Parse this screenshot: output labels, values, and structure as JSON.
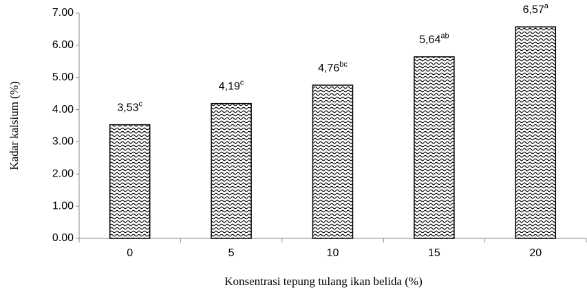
{
  "chart_data": {
    "type": "bar",
    "x_label": "Konsentrasi tepung tulang ikan belida (%)",
    "y_label": "Kadar kalsium (%)",
    "categories": [
      "0",
      "5",
      "10",
      "15",
      "20"
    ],
    "values": [
      3.53,
      4.19,
      4.76,
      5.64,
      6.57
    ],
    "value_labels": [
      "3,53",
      "4,19",
      "4,76",
      "5,64",
      "6,57"
    ],
    "significance": [
      "c",
      "c",
      "bc",
      "ab",
      "a"
    ],
    "color": "#000000",
    "ylim": [
      0,
      7
    ],
    "yticks": [
      {
        "value": 0,
        "label": "0.00"
      },
      {
        "value": 1,
        "label": "1.00"
      },
      {
        "value": 2,
        "label": "2.00"
      },
      {
        "value": 3,
        "label": "3.00"
      },
      {
        "value": 4,
        "label": "4.00"
      },
      {
        "value": 5,
        "label": "5.00"
      },
      {
        "value": 6,
        "label": "6.00"
      },
      {
        "value": 7,
        "label": "7.00"
      }
    ],
    "grid": false
  }
}
